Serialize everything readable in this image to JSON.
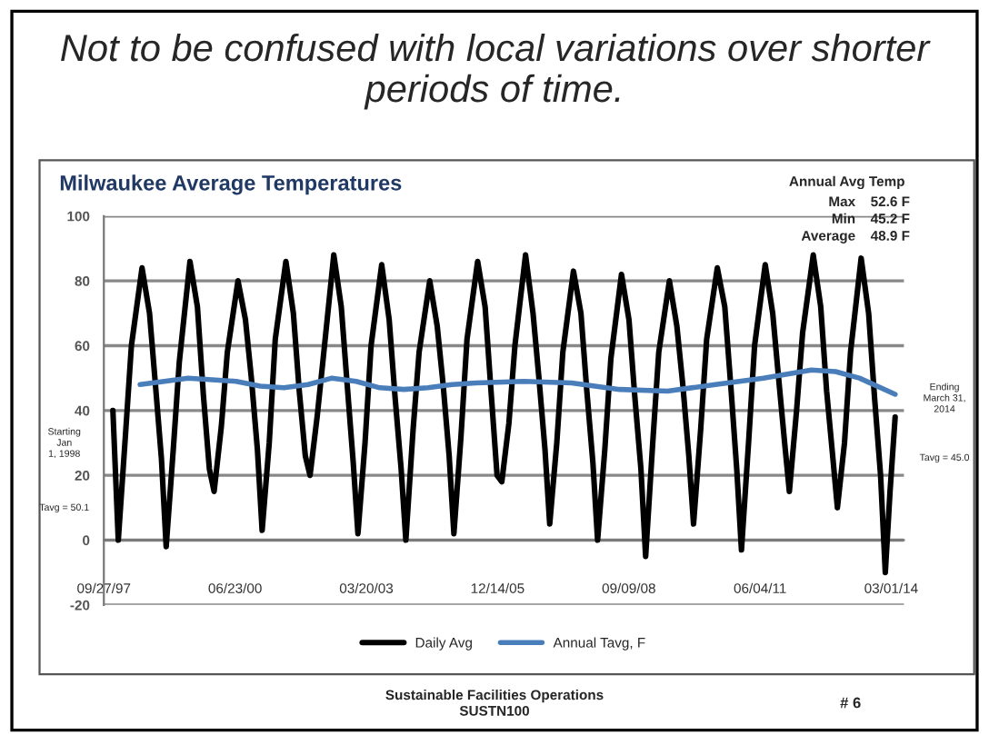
{
  "chart_data": {
    "type": "line",
    "title": "Milwaukee Average Temperatures",
    "subtitle": "Not to be confused with local variations over shorter periods of time.",
    "annotations": [
      "Annual Avg Temp",
      "Max",
      "52.6 F",
      "Min",
      "45.2 F",
      "Average",
      "48.9 F",
      "Starting\nJan\n1, 1998",
      "Tavg = 50.1",
      "Ending\nMarch 31,\n2014",
      "Tavg = 45.0",
      "Sustainable Facilities Operations\nSUSTN100",
      "# 6"
    ],
    "ylim": [
      -20,
      100
    ],
    "yticks": [
      -20,
      0,
      20,
      40,
      60,
      80,
      100
    ],
    "xlim": [
      "1997-09-27",
      "2014-06-06"
    ],
    "xticks": [
      {
        "value": "1997-09-27",
        "label": "09/27/97"
      },
      {
        "value": "2000-06-23",
        "label": "06/23/00"
      },
      {
        "value": "2003-03-20",
        "label": "03/20/03"
      },
      {
        "value": "2005-12-14",
        "label": "12/14/05"
      },
      {
        "value": "2008-09-09",
        "label": "09/09/08"
      },
      {
        "value": "2011-06-06",
        "label": "06/04/11"
      },
      {
        "value": "2014-03-01",
        "label": "03/01/14"
      }
    ],
    "grid": "y",
    "legend": "bottom",
    "series": [
      {
        "name": "Daily Avg",
        "color": "#000000",
        "x": [
          "1997-12-05",
          "1998-01-15",
          "1998-03-10",
          "1998-04-25",
          "1998-07-15",
          "1998-09-10",
          "1998-10-25",
          "1998-12-10",
          "1999-01-15",
          "1999-03-10",
          "1999-04-25",
          "1999-07-15",
          "1999-09-10",
          "1999-10-25",
          "1999-12-10",
          "2000-01-15",
          "2000-03-10",
          "2000-04-25",
          "2000-07-15",
          "2000-09-10",
          "2000-10-25",
          "2000-12-10",
          "2001-01-15",
          "2001-03-10",
          "2001-04-25",
          "2001-07-15",
          "2001-09-10",
          "2001-10-25",
          "2001-12-10",
          "2002-01-15",
          "2002-03-10",
          "2002-04-25",
          "2002-07-15",
          "2002-09-10",
          "2002-10-25",
          "2002-12-10",
          "2003-01-15",
          "2003-03-10",
          "2003-04-25",
          "2003-07-15",
          "2003-09-10",
          "2003-10-25",
          "2003-12-10",
          "2004-01-15",
          "2004-03-10",
          "2004-04-25",
          "2004-07-15",
          "2004-09-10",
          "2004-10-25",
          "2004-12-10",
          "2005-01-15",
          "2005-03-10",
          "2005-04-25",
          "2005-07-15",
          "2005-09-10",
          "2005-10-25",
          "2005-12-10",
          "2006-01-15",
          "2006-03-10",
          "2006-04-25",
          "2006-07-15",
          "2006-09-10",
          "2006-10-25",
          "2006-12-10",
          "2007-01-15",
          "2007-03-10",
          "2007-04-25",
          "2007-07-15",
          "2007-09-10",
          "2007-10-25",
          "2007-12-10",
          "2008-01-15",
          "2008-03-10",
          "2008-04-25",
          "2008-07-15",
          "2008-09-10",
          "2008-10-25",
          "2008-12-10",
          "2009-01-15",
          "2009-03-10",
          "2009-04-25",
          "2009-07-15",
          "2009-09-10",
          "2009-10-25",
          "2009-12-10",
          "2010-01-15",
          "2010-03-10",
          "2010-04-25",
          "2010-07-15",
          "2010-09-10",
          "2010-10-25",
          "2010-12-10",
          "2011-01-15",
          "2011-03-10",
          "2011-04-25",
          "2011-07-15",
          "2011-09-10",
          "2011-10-25",
          "2011-12-10",
          "2012-01-15",
          "2012-03-10",
          "2012-04-25",
          "2012-07-15",
          "2012-09-10",
          "2012-10-25",
          "2012-12-10",
          "2013-01-15",
          "2013-03-10",
          "2013-04-25",
          "2013-07-15",
          "2013-09-10",
          "2013-10-25",
          "2013-12-10",
          "2014-01-15",
          "2014-02-20",
          "2014-03-31"
        ],
        "values": [
          40,
          0,
          32,
          60,
          84,
          70,
          48,
          25,
          -2,
          28,
          55,
          86,
          72,
          45,
          22,
          15,
          35,
          58,
          80,
          68,
          50,
          28,
          3,
          30,
          62,
          86,
          70,
          46,
          26,
          20,
          38,
          56,
          88,
          72,
          48,
          24,
          2,
          30,
          60,
          85,
          68,
          44,
          22,
          0,
          34,
          58,
          80,
          66,
          48,
          26,
          2,
          32,
          62,
          86,
          72,
          46,
          20,
          18,
          36,
          60,
          88,
          70,
          50,
          28,
          5,
          30,
          58,
          83,
          70,
          46,
          24,
          0,
          28,
          56,
          82,
          68,
          44,
          22,
          -5,
          30,
          58,
          80,
          66,
          48,
          26,
          5,
          34,
          62,
          84,
          72,
          48,
          22,
          -3,
          30,
          60,
          85,
          70,
          50,
          30,
          15,
          40,
          64,
          88,
          72,
          46,
          26,
          10,
          30,
          58,
          87,
          70,
          44,
          20,
          -10,
          15,
          38
        ]
      },
      {
        "name": "Annual Tavg, F",
        "color": "#4a7ebb",
        "x": [
          "1998-06-30",
          "1999-01-01",
          "1999-07-01",
          "2000-01-01",
          "2000-07-01",
          "2001-01-01",
          "2001-07-01",
          "2002-01-01",
          "2002-07-01",
          "2003-01-01",
          "2003-07-01",
          "2004-01-01",
          "2004-07-01",
          "2005-01-01",
          "2005-07-01",
          "2006-07-01",
          "2007-07-01",
          "2008-07-01",
          "2009-07-01",
          "2010-07-01",
          "2011-07-01",
          "2012-07-01",
          "2013-01-01",
          "2013-07-01",
          "2014-03-31"
        ],
        "values": [
          48,
          49,
          50,
          49.5,
          49,
          47.5,
          47,
          48,
          50,
          49,
          47,
          46.5,
          47,
          48,
          48.5,
          49,
          48.5,
          46.5,
          46,
          48,
          50,
          52.5,
          52,
          50,
          45
        ]
      }
    ]
  }
}
